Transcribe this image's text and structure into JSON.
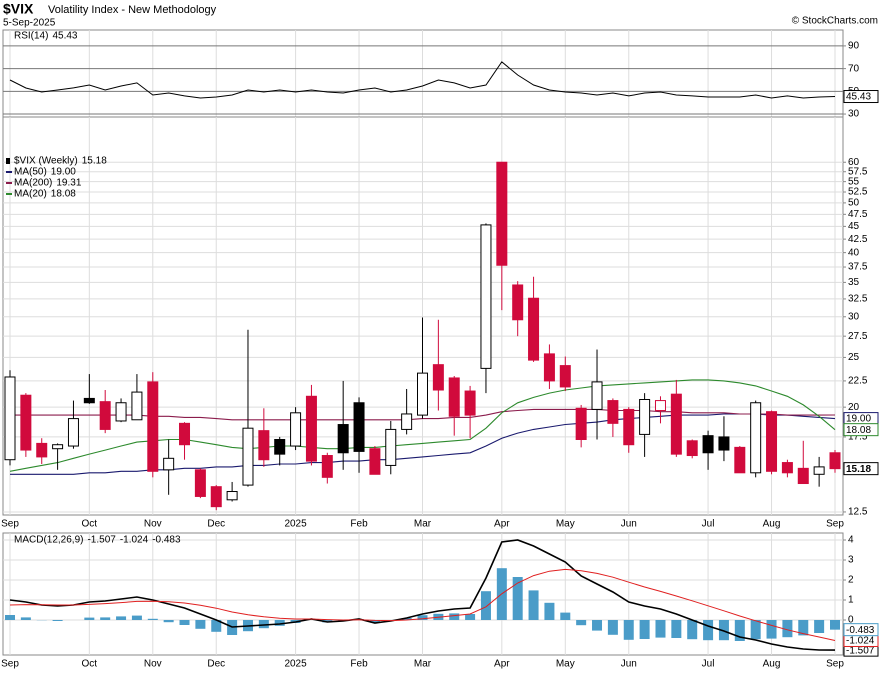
{
  "header": {
    "symbol": "$VIX",
    "name": "Volatility Index - New Methodology",
    "date": "5-Sep-2025",
    "source": "© StockCharts.com"
  },
  "chart_data": [
    {
      "type": "line",
      "title": "RSI(14)",
      "color": "#000000",
      "values": [
        60,
        52.9,
        49.4,
        51.2,
        53,
        55.6,
        51.2,
        54.7,
        57.4,
        46.8,
        48.5,
        46,
        44.1,
        45,
        46.8,
        51.2,
        49.4,
        51.2,
        49.4,
        51.2,
        49.4,
        48.5,
        51.2,
        52.9,
        49.4,
        51.2,
        54.7,
        60,
        57.4,
        52.9,
        55.6,
        75.9,
        64.4,
        55.6,
        51.2,
        49.4,
        48.5,
        46.8,
        48.5,
        46,
        48.5,
        49.4,
        46.8,
        46,
        45,
        45,
        45,
        46.8,
        44.1,
        46,
        44.1,
        45,
        45.43
      ],
      "ylim": [
        27.4,
        104
      ],
      "yticks": [
        30,
        50,
        70,
        90
      ],
      "grid": true
    },
    {
      "type": "candlestick",
      "log": true,
      "grid": true,
      "categories": [
        "Sep",
        null,
        null,
        null,
        null,
        "Oct",
        null,
        null,
        null,
        "Nov",
        null,
        null,
        null,
        "Dec",
        null,
        null,
        null,
        null,
        "2025",
        null,
        null,
        null,
        "Feb",
        null,
        null,
        null,
        "Mar",
        null,
        null,
        null,
        null,
        "Apr",
        null,
        null,
        null,
        "May",
        null,
        null,
        null,
        "Jun",
        null,
        null,
        null,
        null,
        "Jul",
        null,
        null,
        null,
        "Aug",
        null,
        null,
        null,
        "Sep"
      ],
      "series": [
        {
          "name": "$VIX (Weekly)",
          "open": [
            15.8,
            21.1,
            17.0,
            16.6,
            16.8,
            20.8,
            20.5,
            18.8,
            18.9,
            22.4,
            15.1,
            18.6,
            15.1,
            14.0,
            13.2,
            14.1,
            18.0,
            17.3,
            16.8,
            21.0,
            16.1,
            18.5,
            20.4,
            16.6,
            15.4,
            18.1,
            19.3,
            24.2,
            22.8,
            21.5,
            23.8,
            60.0,
            34.6,
            32.6,
            25.4,
            24.1,
            19.9,
            19.8,
            20.6,
            19.8,
            17.7,
            19.7,
            21.2,
            17.2,
            17.6,
            17.5,
            16.7,
            14.9,
            19.6,
            15.6,
            15.2,
            14.8,
            16.3
          ],
          "high": [
            23.6,
            21.3,
            17.4,
            17.0,
            20.6,
            23.2,
            21.6,
            20.8,
            23.2,
            23.4,
            17.3,
            18.7,
            15.2,
            14.1,
            14.3,
            28.3,
            19.9,
            17.5,
            20.0,
            22.1,
            16.3,
            22.5,
            20.9,
            16.8,
            18.8,
            21.7,
            29.9,
            29.6,
            23.0,
            22.0,
            45.6,
            60.1,
            35.2,
            35.9,
            26.5,
            25.1,
            20.2,
            25.9,
            20.8,
            20.0,
            21.3,
            21.0,
            22.6,
            17.3,
            18.0,
            19.2,
            16.8,
            20.6,
            19.7,
            15.8,
            17.2,
            16.0,
            16.5
          ],
          "low": [
            15.4,
            16.0,
            15.5,
            15.1,
            16.6,
            20.3,
            17.8,
            18.7,
            18.9,
            14.6,
            13.5,
            15.8,
            13.3,
            12.6,
            13.1,
            14.0,
            15.3,
            15.4,
            16.5,
            15.4,
            14.2,
            15.1,
            14.9,
            14.8,
            14.8,
            17.7,
            19.0,
            19.7,
            17.6,
            17.4,
            21.3,
            30.9,
            27.5,
            24.5,
            21.7,
            21.5,
            16.7,
            17.3,
            17.5,
            16.3,
            16.0,
            18.6,
            16.0,
            15.9,
            15.1,
            15.7,
            14.9,
            14.6,
            14.8,
            14.6,
            14.2,
            14.0,
            14.9
          ],
          "close": [
            22.9,
            16.5,
            16.0,
            16.9,
            19.0,
            20.4,
            18.1,
            20.4,
            21.4,
            15.0,
            15.9,
            16.9,
            13.4,
            12.8,
            13.7,
            18.2,
            15.8,
            16.2,
            19.5,
            15.7,
            14.6,
            16.3,
            16.4,
            14.8,
            18.1,
            19.4,
            23.3,
            21.6,
            19.2,
            19.3,
            45.3,
            37.8,
            29.6,
            24.7,
            22.5,
            21.9,
            17.3,
            22.4,
            18.6,
            16.9,
            20.7,
            20.6,
            16.2,
            16.1,
            16.3,
            16.5,
            14.9,
            20.4,
            15.0,
            14.9,
            14.2,
            15.3,
            15.18
          ],
          "colors": [
            "#000000",
            "#d10a3c",
            "#d10a3c",
            "#000000",
            "#000000",
            "#000000",
            "#d10a3c",
            "#000000",
            "#000000",
            "#d10a3c",
            "#000000",
            "#d10a3c",
            "#d10a3c",
            "#d10a3c",
            "#000000",
            "#000000",
            "#d10a3c",
            "#000000",
            "#000000",
            "#d10a3c",
            "#d10a3c",
            "#000000",
            "#000000",
            "#d10a3c",
            "#000000",
            "#000000",
            "#000000",
            "#d10a3c",
            "#d10a3c",
            "#d10a3c",
            "#000000",
            "#d10a3c",
            "#d10a3c",
            "#d10a3c",
            "#d10a3c",
            "#d10a3c",
            "#d10a3c",
            "#000000",
            "#d10a3c",
            "#d10a3c",
            "#000000",
            "#d10a3c",
            "#d10a3c",
            "#d10a3c",
            "#000000",
            "#000000",
            "#d10a3c",
            "#000000",
            "#d10a3c",
            "#d10a3c",
            "#d10a3c",
            "#000000",
            "#d10a3c"
          ]
        }
      ],
      "overlays": [
        {
          "name": "MA(50)",
          "color": "#1a1a6e",
          "tag": true,
          "last_label": "19.00",
          "values": [
            14.8,
            14.8,
            14.8,
            14.8,
            14.8,
            14.9,
            14.9,
            15.0,
            15.0,
            15.1,
            15.1,
            15.2,
            15.2,
            15.3,
            15.3,
            15.4,
            15.4,
            15.5,
            15.5,
            15.6,
            15.6,
            15.7,
            15.7,
            15.8,
            15.8,
            15.9,
            16.0,
            16.1,
            16.2,
            16.3,
            16.8,
            17.4,
            17.8,
            18.1,
            18.3,
            18.5,
            18.6,
            18.7,
            18.9,
            19.0,
            19.1,
            19.2,
            19.3,
            19.3,
            19.3,
            19.4,
            19.4,
            19.4,
            19.3,
            19.3,
            19.2,
            19.1,
            19.0
          ]
        },
        {
          "name": "MA(200)",
          "color": "#8b1c4c",
          "tag": false,
          "values": [
            19.3,
            19.3,
            19.3,
            19.3,
            19.3,
            19.3,
            19.3,
            19.3,
            19.3,
            19.2,
            19.2,
            19.1,
            19.1,
            19.0,
            18.9,
            18.9,
            18.9,
            18.9,
            18.9,
            18.9,
            18.9,
            18.9,
            18.9,
            18.9,
            18.9,
            18.9,
            19.0,
            19.0,
            19.1,
            19.1,
            19.3,
            19.6,
            19.7,
            19.8,
            19.8,
            19.8,
            19.8,
            19.8,
            19.7,
            19.7,
            19.7,
            19.6,
            19.6,
            19.5,
            19.5,
            19.5,
            19.4,
            19.4,
            19.4,
            19.3,
            19.3,
            19.3,
            19.31
          ]
        },
        {
          "name": "MA(20)",
          "color": "#2d8a2d",
          "tag": true,
          "values": [
            15.0,
            15.2,
            15.4,
            15.6,
            15.9,
            16.2,
            16.5,
            16.8,
            17.1,
            17.2,
            17.3,
            17.3,
            17.1,
            16.9,
            16.7,
            16.6,
            16.7,
            16.8,
            16.8,
            16.7,
            16.6,
            16.6,
            16.7,
            16.7,
            16.8,
            16.9,
            17.0,
            17.1,
            17.2,
            17.3,
            18.2,
            19.5,
            20.4,
            20.9,
            21.3,
            21.6,
            21.8,
            22.0,
            22.1,
            22.2,
            22.3,
            22.4,
            22.5,
            22.6,
            22.6,
            22.5,
            22.3,
            22.0,
            21.5,
            21.0,
            20.2,
            19.2,
            18.08
          ]
        }
      ],
      "ylim": [
        12.33,
        73.5
      ],
      "yticks": [
        12.5,
        17.5,
        20,
        22.5,
        25,
        27.5,
        30,
        32.5,
        35,
        37.5,
        40,
        42.5,
        45,
        47.5,
        50,
        52.5,
        55,
        57.5,
        60
      ]
    },
    {
      "type": "macd",
      "title": "MACD(12,26,9)",
      "grid": true,
      "categories": [
        "Sep",
        null,
        null,
        null,
        null,
        "Oct",
        null,
        null,
        null,
        "Nov",
        null,
        null,
        null,
        "Dec",
        null,
        null,
        null,
        null,
        "2025",
        null,
        null,
        null,
        "Feb",
        null,
        null,
        null,
        "Mar",
        null,
        null,
        null,
        null,
        "Apr",
        null,
        null,
        null,
        "May",
        null,
        null,
        null,
        "Jun",
        null,
        null,
        null,
        null,
        "Jul",
        null,
        null,
        null,
        "Aug",
        null,
        null,
        null,
        "Sep"
      ],
      "series": [
        {
          "color": "#000000",
          "kind": "line",
          "values": [
            1.0,
            0.9,
            0.75,
            0.7,
            0.75,
            0.9,
            0.95,
            1.05,
            1.15,
            1.0,
            0.8,
            0.6,
            0.3,
            0.0,
            -0.35,
            -0.3,
            -0.25,
            -0.2,
            -0.1,
            0.05,
            -0.1,
            -0.05,
            0.05,
            -0.15,
            -0.05,
            0.1,
            0.3,
            0.45,
            0.55,
            0.6,
            2.1,
            3.9,
            4.0,
            3.7,
            3.3,
            2.9,
            2.2,
            1.8,
            1.4,
            0.9,
            0.7,
            0.55,
            0.3,
            0.0,
            -0.3,
            -0.55,
            -0.85,
            -1.0,
            -1.2,
            -1.35,
            -1.45,
            -1.5,
            -1.507
          ]
        },
        {
          "color": "#e02020",
          "kind": "line",
          "values": [
            0.75,
            0.77,
            0.76,
            0.75,
            0.75,
            0.78,
            0.82,
            0.87,
            0.93,
            0.94,
            0.91,
            0.85,
            0.74,
            0.59,
            0.4,
            0.26,
            0.16,
            0.09,
            0.05,
            0.05,
            0.02,
            0.0,
            0.01,
            -0.02,
            -0.03,
            0.0,
            0.06,
            0.14,
            0.22,
            0.3,
            0.66,
            1.31,
            1.85,
            2.22,
            2.44,
            2.53,
            2.46,
            2.33,
            2.14,
            1.89,
            1.65,
            1.43,
            1.2,
            0.96,
            0.71,
            0.46,
            0.2,
            -0.04,
            -0.27,
            -0.49,
            -0.68,
            -0.85,
            -1.024
          ]
        },
        {
          "color": "#4a9cc8",
          "kind": "bar",
          "values": [
            0.25,
            0.13,
            -0.01,
            -0.05,
            0.0,
            0.12,
            0.13,
            0.18,
            0.22,
            0.06,
            -0.11,
            -0.25,
            -0.44,
            -0.59,
            -0.75,
            -0.56,
            -0.41,
            -0.29,
            -0.15,
            0.0,
            -0.12,
            -0.05,
            0.04,
            -0.13,
            -0.02,
            0.1,
            0.24,
            0.31,
            0.33,
            0.3,
            1.44,
            2.59,
            2.15,
            1.48,
            0.86,
            0.37,
            -0.26,
            -0.53,
            -0.74,
            -0.99,
            -0.95,
            -0.88,
            -0.9,
            -0.96,
            -1.01,
            -1.01,
            -1.05,
            -0.96,
            -0.93,
            -0.86,
            -0.77,
            -0.65,
            -0.483
          ]
        }
      ],
      "ylim": [
        -1.75,
        4.35
      ],
      "yticks": [
        0,
        1,
        2,
        3,
        4
      ]
    }
  ]
}
